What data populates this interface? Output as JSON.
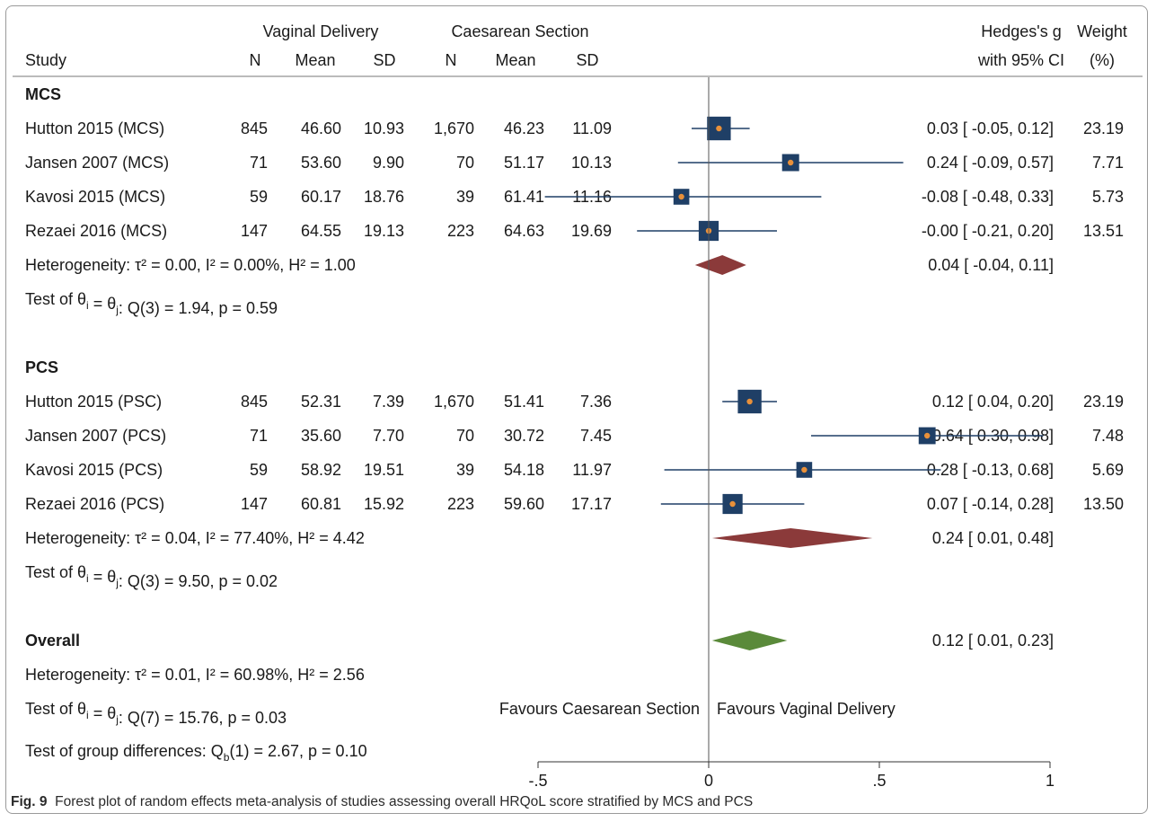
{
  "header": {
    "study": "Study",
    "vaginal_group": "Vaginal Delivery",
    "caesarean_group": "Caesarean Section",
    "n": "N",
    "mean": "Mean",
    "sd": "SD",
    "effect_line1": "Hedges's g",
    "effect_line2": "with 95% CI",
    "weight_line1": "Weight",
    "weight_line2": "(%)"
  },
  "chart_data": {
    "type": "forest",
    "xlim": [
      -0.5,
      1
    ],
    "xticks": [
      {
        "value": -0.5,
        "label": "-.5"
      },
      {
        "value": 0,
        "label": "0"
      },
      {
        "value": 0.5,
        "label": ".5"
      },
      {
        "value": 1,
        "label": "1"
      }
    ],
    "reference_line": 0,
    "favours_left": "Favours Caesarean Section",
    "favours_right": "Favours Vaginal Delivery",
    "groups": [
      {
        "name": "MCS",
        "studies": [
          {
            "label": "Hutton 2015 (MCS)",
            "vd_n": "845",
            "vd_mean": "46.60",
            "vd_sd": "10.93",
            "cs_n": "1,670",
            "cs_mean": "46.23",
            "cs_sd": "11.09",
            "g": 0.03,
            "lo": -0.05,
            "hi": 0.12,
            "ci_text": "0.03 [ -0.05, 0.12]",
            "weight": 23.19,
            "weight_text": "23.19"
          },
          {
            "label": "Jansen 2007 (MCS)",
            "vd_n": "71",
            "vd_mean": "53.60",
            "vd_sd": "9.90",
            "cs_n": "70",
            "cs_mean": "51.17",
            "cs_sd": "10.13",
            "g": 0.24,
            "lo": -0.09,
            "hi": 0.57,
            "ci_text": "0.24 [ -0.09, 0.57]",
            "weight": 7.71,
            "weight_text": "7.71"
          },
          {
            "label": "Kavosi 2015 (MCS)",
            "vd_n": "59",
            "vd_mean": "60.17",
            "vd_sd": "18.76",
            "cs_n": "39",
            "cs_mean": "61.41",
            "cs_sd": "11.16",
            "g": -0.08,
            "lo": -0.48,
            "hi": 0.33,
            "ci_text": "-0.08 [ -0.48, 0.33]",
            "weight": 5.73,
            "weight_text": "5.73"
          },
          {
            "label": "Rezaei 2016 (MCS)",
            "vd_n": "147",
            "vd_mean": "64.55",
            "vd_sd": "19.13",
            "cs_n": "223",
            "cs_mean": "64.63",
            "cs_sd": "19.69",
            "g": -0.0,
            "lo": -0.21,
            "hi": 0.2,
            "ci_text": "-0.00 [ -0.21, 0.20]",
            "weight": 13.51,
            "weight_text": "13.51"
          }
        ],
        "summary": {
          "heterogeneity": "Heterogeneity: τ² = 0.00, I² = 0.00%, H² = 1.00",
          "g": 0.04,
          "lo": -0.04,
          "hi": 0.11,
          "ci_text": "0.04 [ -0.04, 0.11]"
        },
        "test": {
          "prefix": "Test of θ",
          "sub1": "i",
          "mid": " = θ",
          "sub2": "j",
          "suffix": ": Q(3) = 1.94, p = 0.59"
        }
      },
      {
        "name": "PCS",
        "studies": [
          {
            "label": "Hutton 2015 (PSC)",
            "vd_n": "845",
            "vd_mean": "52.31",
            "vd_sd": "7.39",
            "cs_n": "1,670",
            "cs_mean": "51.41",
            "cs_sd": "7.36",
            "g": 0.12,
            "lo": 0.04,
            "hi": 0.2,
            "ci_text": "0.12 [  0.04, 0.20]",
            "weight": 23.19,
            "weight_text": "23.19"
          },
          {
            "label": "Jansen 2007 (PCS)",
            "vd_n": "71",
            "vd_mean": "35.60",
            "vd_sd": "7.70",
            "cs_n": "70",
            "cs_mean": "30.72",
            "cs_sd": "7.45",
            "g": 0.64,
            "lo": 0.3,
            "hi": 0.98,
            "ci_text": "0.64 [  0.30, 0.98]",
            "weight": 7.48,
            "weight_text": "7.48"
          },
          {
            "label": "Kavosi 2015 (PCS)",
            "vd_n": "59",
            "vd_mean": "58.92",
            "vd_sd": "19.51",
            "cs_n": "39",
            "cs_mean": "54.18",
            "cs_sd": "11.97",
            "g": 0.28,
            "lo": -0.13,
            "hi": 0.68,
            "ci_text": "0.28 [ -0.13, 0.68]",
            "weight": 5.69,
            "weight_text": "5.69"
          },
          {
            "label": "Rezaei 2016 (PCS)",
            "vd_n": "147",
            "vd_mean": "60.81",
            "vd_sd": "15.92",
            "cs_n": "223",
            "cs_mean": "59.60",
            "cs_sd": "17.17",
            "g": 0.07,
            "lo": -0.14,
            "hi": 0.28,
            "ci_text": "0.07 [ -0.14, 0.28]",
            "weight": 13.5,
            "weight_text": "13.50"
          }
        ],
        "summary": {
          "heterogeneity": "Heterogeneity: τ² = 0.04, I² = 77.40%, H² = 4.42",
          "g": 0.24,
          "lo": 0.01,
          "hi": 0.48,
          "ci_text": "0.24 [  0.01, 0.48]"
        },
        "test": {
          "prefix": "Test of θ",
          "sub1": "i",
          "mid": " = θ",
          "sub2": "j",
          "suffix": ": Q(3) = 9.50, p = 0.02"
        }
      }
    ],
    "overall": {
      "label": "Overall",
      "g": 0.12,
      "lo": 0.01,
      "hi": 0.23,
      "ci_text": "0.12 [  0.01, 0.23]",
      "heterogeneity": "Heterogeneity: τ² = 0.01, I² = 60.98%, H² = 2.56",
      "test": {
        "prefix": "Test of θ",
        "sub1": "i",
        "mid": " = θ",
        "sub2": "j",
        "suffix": ": Q(7) = 15.76, p = 0.03"
      },
      "group_diff": {
        "prefix": "Test of group differences: Q",
        "sub": "b",
        "suffix": "(1) = 2.67, p = 0.10"
      }
    },
    "colors": {
      "study_box": "#1f3f66",
      "study_point": "#e8903a",
      "ci_line": "#1f3f66",
      "subgroup_diamond": "#8b3a3a",
      "overall_diamond": "#5a8a3a",
      "reference_line": "#555555"
    }
  },
  "caption": {
    "label": "Fig. 9",
    "text": "Forest plot of random effects meta-analysis of studies assessing overall HRQoL score stratified by MCS and PCS"
  }
}
